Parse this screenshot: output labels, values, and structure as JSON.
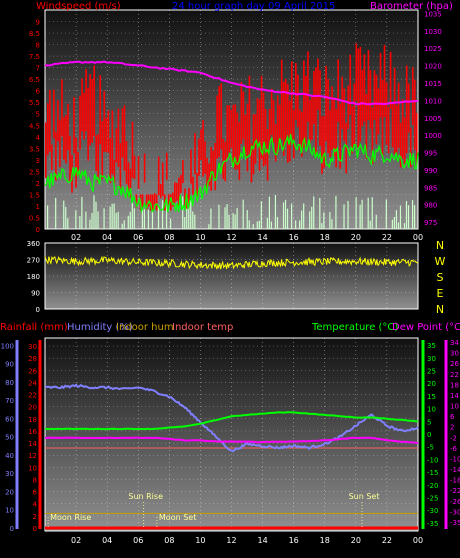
{
  "colors": {
    "background": "#000000",
    "panel_top": "#1a1a1a",
    "panel_bottom": "#8a8a8a",
    "grid": "#ffffff",
    "windspeed_bar": "#ff0000",
    "windspeed_avg": "#00ff00",
    "calm_bar": "#ccffcc",
    "barometer": "#ff00ff",
    "direction": "#ffff00",
    "rainfall": "#ff0000",
    "humidity": "#8080ff",
    "indoor_hum": "#c8a000",
    "indoor_temp": "#ff6060",
    "temperature": "#00ff00",
    "dew_point": "#ff00ff",
    "events": "#ffff99",
    "title": "#0000ff",
    "zero_line": "#ff0000"
  },
  "chart_data": [
    {
      "type": "bar",
      "id": "wind",
      "title": "24 hour graph day  09 April 2015",
      "legend_left": "Windspeed (m/s)",
      "legend_right": "Barometer (hpa)",
      "x_ticks": [
        "02",
        "04",
        "06",
        "08",
        "10",
        "12",
        "14",
        "16",
        "18",
        "20",
        "22",
        "00"
      ],
      "ylim": [
        0,
        9.5
      ],
      "y_ticks": [
        "0",
        "0.5",
        "1",
        "1.5",
        "2",
        "2.5",
        "3",
        "3.5",
        "4",
        "4.5",
        "5",
        "5.5",
        "6",
        "6.5",
        "7",
        "7.5",
        "8",
        "8.5",
        "9"
      ],
      "y2lim": [
        973,
        1036
      ],
      "y2_ticks": [
        "975",
        "980",
        "985",
        "990",
        "995",
        "1000",
        "1005",
        "1010",
        "1015",
        "1020",
        "1025",
        "1030",
        "1035"
      ],
      "series": [
        {
          "name": "Windspeed gust",
          "hours": [
            0,
            1,
            2,
            3,
            4,
            5,
            6,
            7,
            8,
            9,
            10,
            11,
            12,
            13,
            14,
            15,
            16,
            17,
            18,
            19,
            20,
            21,
            22,
            23,
            24
          ],
          "values": [
            5.2,
            5.0,
            4.5,
            6.0,
            4.2,
            5.0,
            2.5,
            1.8,
            2.0,
            2.2,
            3.0,
            5.0,
            4.5,
            5.2,
            5.6,
            6.0,
            6.2,
            6.5,
            5.8,
            6.0,
            6.5,
            6.2,
            6.5,
            5.8,
            5.5
          ]
        },
        {
          "name": "Windspeed average",
          "hours": [
            0,
            1,
            2,
            3,
            4,
            5,
            6,
            7,
            8,
            9,
            10,
            11,
            12,
            13,
            14,
            15,
            16,
            17,
            18,
            19,
            20,
            21,
            22,
            23,
            24
          ],
          "values": [
            2.0,
            2.2,
            2.5,
            2.0,
            2.0,
            1.8,
            1.2,
            1.0,
            1.0,
            1.2,
            1.5,
            2.5,
            3.0,
            3.5,
            3.6,
            3.6,
            3.8,
            3.5,
            3.0,
            3.2,
            3.5,
            3.2,
            3.3,
            3.0,
            3.0
          ]
        },
        {
          "name": "Barometer",
          "hours": [
            0,
            2,
            4,
            6,
            8,
            10,
            12,
            14,
            16,
            18,
            20,
            22,
            24
          ],
          "values": [
            1020,
            1021,
            1021,
            1020,
            1019,
            1018,
            1015,
            1013,
            1012,
            1011,
            1009,
            1009,
            1010
          ]
        }
      ]
    },
    {
      "type": "scatter",
      "id": "direction",
      "y_ticks": [
        "0",
        "90",
        "180",
        "270",
        "360"
      ],
      "ylim": [
        0,
        360
      ],
      "right_labels": [
        "N",
        "W",
        "S",
        "E",
        "N"
      ],
      "series": [
        {
          "name": "Wind direction",
          "hours": [
            0,
            2,
            4,
            6,
            8,
            10,
            12,
            14,
            16,
            18,
            20,
            22,
            24
          ],
          "values": [
            270,
            260,
            265,
            255,
            250,
            240,
            235,
            250,
            255,
            258,
            260,
            255,
            255
          ]
        }
      ]
    },
    {
      "type": "line",
      "id": "temp",
      "legend_left": [
        "Rainfall (mm)",
        "Humidity (%)",
        "Indoor hum",
        "Indoor temp"
      ],
      "legend_right": [
        "Temperature (°C)",
        "Dew Point (°C)"
      ],
      "x_ticks": [
        "02",
        "04",
        "06",
        "08",
        "10",
        "12",
        "14",
        "16",
        "18",
        "20",
        "22",
        "00"
      ],
      "hum_ticks": [
        "0",
        "10",
        "20",
        "30",
        "40",
        "50",
        "60",
        "70",
        "80",
        "90",
        "100"
      ],
      "hum_lim": [
        0,
        103
      ],
      "rain_ticks": [
        "0",
        "2",
        "4",
        "6",
        "8",
        "10",
        "12",
        "14",
        "16",
        "18",
        "20",
        "22",
        "24",
        "26",
        "28",
        "30"
      ],
      "rain_lim": [
        0,
        31
      ],
      "temp_ticks": [
        "-35",
        "-30",
        "-25",
        "-20",
        "-15",
        "-10",
        "-5",
        "0",
        "5",
        "10",
        "15",
        "20",
        "25",
        "30",
        "35"
      ],
      "temp_lim": [
        -37,
        37
      ],
      "dew_ticks": [
        "-35",
        "-30",
        "-26",
        "-22",
        "-18",
        "-14",
        "-10",
        "-6",
        "-2",
        "2",
        "6",
        "10",
        "14",
        "18",
        "22",
        "26",
        "30",
        "34"
      ],
      "series": [
        {
          "name": "Humidity",
          "hours": [
            0,
            1,
            2,
            3,
            4,
            5,
            6,
            7,
            8,
            9,
            10,
            11,
            12,
            13,
            14,
            15,
            16,
            17,
            18,
            19,
            20,
            21,
            22,
            23,
            24
          ],
          "values": [
            77,
            77,
            78,
            77,
            77,
            76,
            77,
            75,
            72,
            66,
            58,
            50,
            42,
            46,
            45,
            44,
            45,
            44,
            46,
            50,
            56,
            62,
            56,
            53,
            55
          ]
        },
        {
          "name": "Temperature",
          "hours": [
            0,
            1,
            2,
            3,
            4,
            5,
            6,
            7,
            8,
            9,
            10,
            11,
            12,
            13,
            14,
            15,
            16,
            17,
            18,
            19,
            20,
            21,
            22,
            23,
            24
          ],
          "values": [
            2.0,
            2.0,
            2.0,
            2.0,
            2.0,
            2.0,
            2.0,
            2.0,
            2.5,
            3.0,
            4.0,
            5.5,
            7.0,
            7.5,
            8.0,
            8.5,
            8.5,
            8.0,
            7.5,
            7.0,
            6.5,
            6.5,
            6.0,
            5.5,
            5.0
          ]
        },
        {
          "name": "Dew Point",
          "hours": [
            0,
            1,
            2,
            3,
            4,
            5,
            6,
            7,
            8,
            9,
            10,
            11,
            12,
            13,
            14,
            15,
            16,
            17,
            18,
            19,
            20,
            21,
            22,
            23,
            24
          ],
          "values": [
            -1.5,
            -1.5,
            -1.5,
            -1.5,
            -1.5,
            -1.5,
            -1.5,
            -1.5,
            -2.0,
            -2.5,
            -2.5,
            -3.0,
            -3.0,
            -3.0,
            -3.2,
            -3.0,
            -3.0,
            -2.8,
            -2.5,
            -2.0,
            -1.5,
            -1.5,
            -2.5,
            -3.0,
            -3.5
          ]
        },
        {
          "name": "Indoor temp",
          "hours": [
            0,
            24
          ],
          "values": [
            -5.5,
            -5.5
          ]
        },
        {
          "name": "Indoor hum",
          "hours": [
            0,
            24
          ],
          "values": [
            8,
            8
          ]
        },
        {
          "name": "Rainfall",
          "hours": [
            0,
            24
          ],
          "values": [
            0,
            0
          ]
        }
      ],
      "events": [
        {
          "label": "Sun Rise",
          "hour": 6.35
        },
        {
          "label": "Moon Rise",
          "hour": 0.2
        },
        {
          "label": "Moon Set",
          "hour": 7.2
        },
        {
          "label": "Sun Set",
          "hour": 20.4
        }
      ]
    }
  ]
}
